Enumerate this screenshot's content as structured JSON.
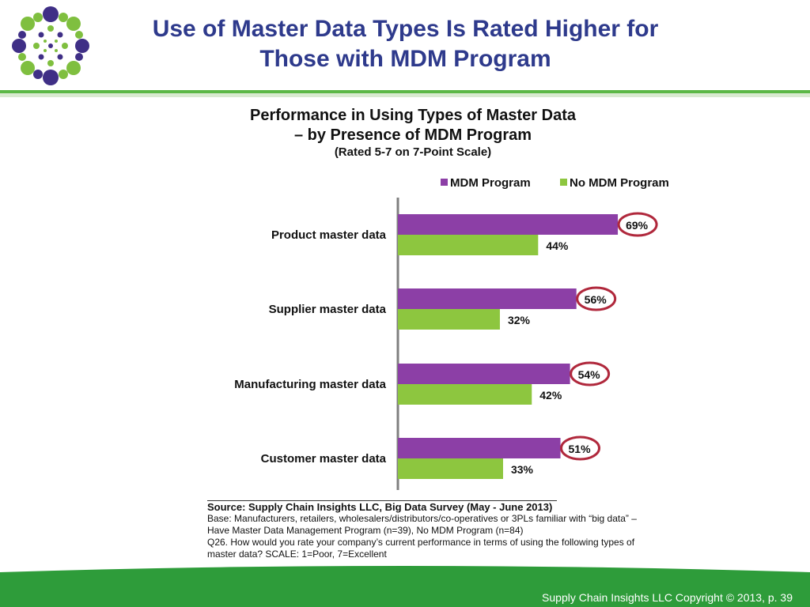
{
  "slide": {
    "title_line1": "Use of Master Data Types Is Rated Higher for",
    "title_line2": "Those with MDM Program",
    "footer": "Supply Chain Insights LLC Copyright © 2013, p. 39"
  },
  "colors": {
    "title": "#2e3a8c",
    "mdm": "#8c3fa6",
    "no_mdm": "#8dc63f",
    "highlight_circle": "#b0283c",
    "rule_green": "#5cb846"
  },
  "chart_data": {
    "type": "bar",
    "orientation": "horizontal",
    "title_line1": "Performance  in Using Types of Master Data",
    "title_line2": "– by Presence of MDM Program",
    "subtitle": "(Rated 5-7 on 7-Point Scale)",
    "categories": [
      "Product master data",
      "Supplier master data",
      "Manufacturing master data",
      "Customer master data"
    ],
    "series": [
      {
        "name": "MDM Program",
        "color": "#8c3fa6",
        "values": [
          69,
          56,
          54,
          51
        ],
        "labels": [
          "69%",
          "56%",
          "54%",
          "51%"
        ],
        "highlighted": true
      },
      {
        "name": "No MDM Program",
        "color": "#8dc63f",
        "values": [
          44,
          32,
          42,
          33
        ],
        "labels": [
          "44%",
          "32%",
          "42%",
          "33%"
        ],
        "highlighted": false
      }
    ],
    "xlim": [
      0,
      100
    ],
    "grid": false,
    "legend_position": "top-right",
    "value_labels": true
  },
  "notes": {
    "source": "Source:  Supply Chain Insights LLC, Big Data Survey  (May - June 2013)",
    "base_line1": "Base:  Manufacturers, retailers, wholesalers/distributors/co-operatives or 3PLs familiar with “big data” –",
    "base_line2": "Have Master Data Management Program (n=39), No MDM Program (n=84)",
    "q26_line1": "Q26. How would you rate your company’s current performance in terms of using the following types of",
    "q26_line2": "master data?  SCALE: 1=Poor, 7=Excellent"
  }
}
